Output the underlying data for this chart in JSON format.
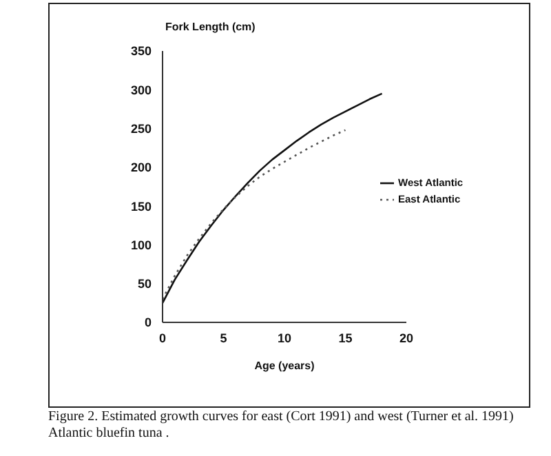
{
  "chart_data": {
    "type": "line",
    "xlabel": "Age (years)",
    "ylabel": "Fork Length (cm)",
    "annotations": [
      "Figure 2.  Estimated growth curves for east (Cort 1991) and west (Turner et al. 1991) Atlantic bluefin tuna ."
    ],
    "series": [
      {
        "name": "West Atlantic",
        "color": "#111111",
        "line_style": "solid",
        "x": [
          0,
          1,
          2,
          3,
          4,
          5,
          6,
          7,
          8,
          9,
          10,
          11,
          12,
          13,
          14,
          15,
          16,
          17,
          18
        ],
        "values": [
          25,
          55,
          80,
          104,
          125,
          145,
          163,
          180,
          196,
          210,
          222,
          234,
          245,
          255,
          264,
          272,
          280,
          288,
          295
        ]
      },
      {
        "name": "East Atlantic",
        "color": "#555555",
        "line_style": "dotted",
        "x": [
          0,
          1,
          2,
          3,
          4,
          5,
          6,
          7,
          8,
          9,
          10,
          11,
          12,
          13,
          14,
          15
        ],
        "values": [
          30,
          60,
          86,
          108,
          128,
          146,
          162,
          176,
          188,
          198,
          207,
          216,
          225,
          233,
          241,
          248
        ]
      }
    ],
    "xlim": [
      0,
      20
    ],
    "xticks": [
      0,
      5,
      10,
      15,
      20
    ],
    "ylim": [
      0,
      350
    ],
    "yticks": [
      0,
      50,
      100,
      150,
      200,
      250,
      300,
      350
    ],
    "grid": false,
    "legend": "right",
    "marker": "none"
  }
}
